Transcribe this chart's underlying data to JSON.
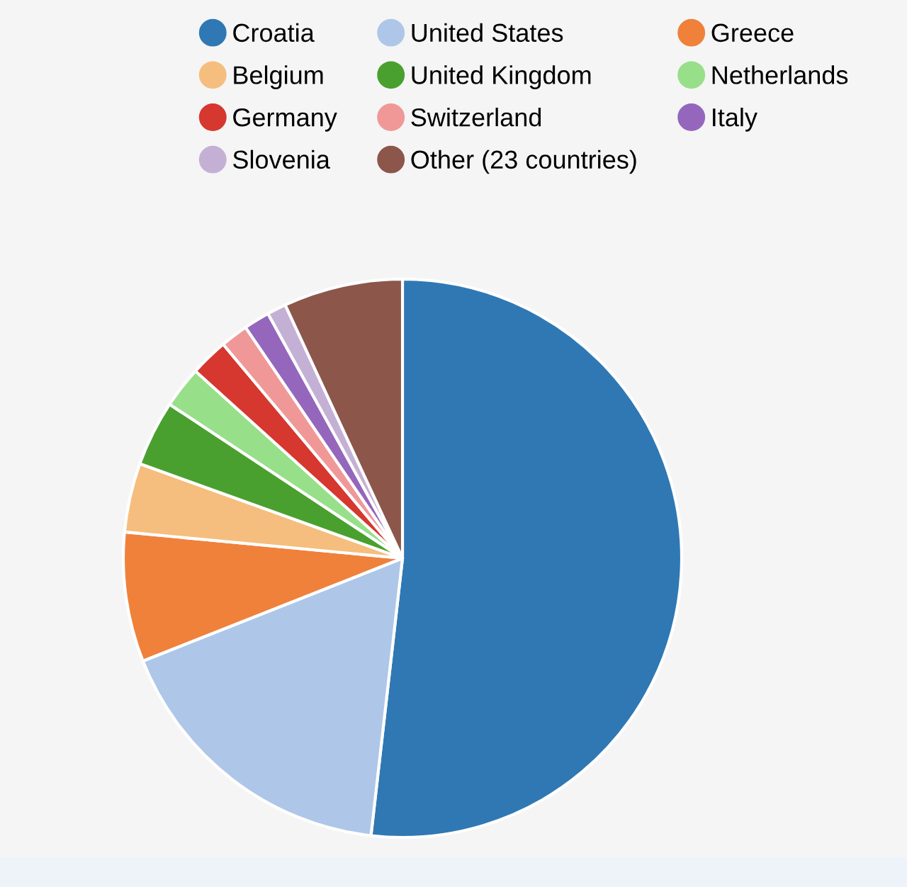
{
  "chart_data": {
    "type": "pie",
    "categories": [
      "Croatia",
      "United States",
      "Greece",
      "Belgium",
      "United Kingdom",
      "Netherlands",
      "Germany",
      "Switzerland",
      "Italy",
      "Slovenia",
      "Other (23 countries)"
    ],
    "values": [
      51.8,
      17.2,
      7.5,
      4.0,
      3.8,
      2.4,
      2.2,
      1.6,
      1.5,
      1.1,
      6.9
    ],
    "colors": [
      "#2f78b4",
      "#aec7e8",
      "#ef813b",
      "#f5be7e",
      "#4aa02f",
      "#98df8a",
      "#d6372f",
      "#f09898",
      "#9467bd",
      "#c5b0d5",
      "#8c564b"
    ],
    "legend": "top"
  }
}
